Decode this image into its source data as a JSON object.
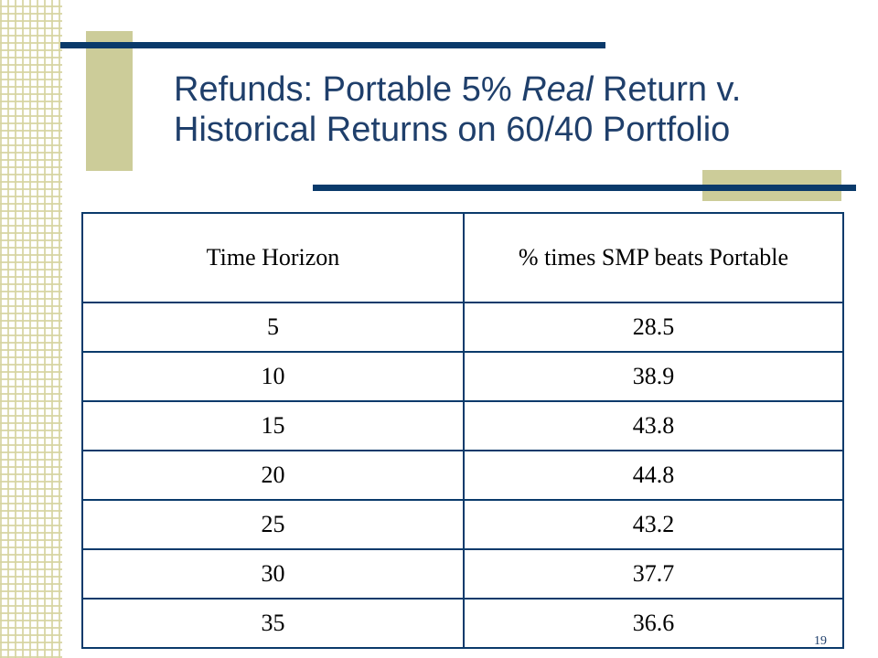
{
  "slide": {
    "title_line1_a": "Refunds: Portable 5% ",
    "title_line1_italic": "Real",
    "title_line1_b": " Return v.",
    "title_line2": "Historical Returns on 60/40 Portfolio",
    "page_number": "19"
  },
  "table": {
    "headers": [
      "Time Horizon",
      "% times SMP beats Portable"
    ],
    "rows": [
      [
        "5",
        "28.5"
      ],
      [
        "10",
        "38.9"
      ],
      [
        "15",
        "43.8"
      ],
      [
        "20",
        "44.8"
      ],
      [
        "25",
        "43.2"
      ],
      [
        "30",
        "37.7"
      ],
      [
        "35",
        "36.6"
      ]
    ]
  },
  "colors": {
    "accent": "#cccc99",
    "rule": "#0a3a6b",
    "title": "#1f3f6b"
  }
}
